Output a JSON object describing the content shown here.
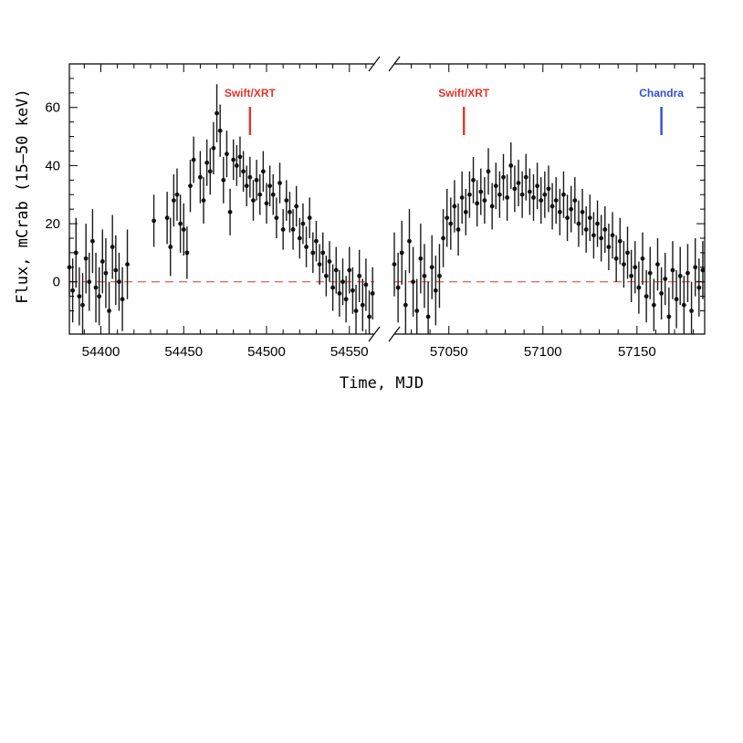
{
  "chart_data": {
    "type": "scatter",
    "xlabel": "Time, MJD",
    "ylabel": "Flux, mCrab (15–50 keV)",
    "ylim": [
      -18,
      75
    ],
    "y_ticks": [
      0,
      20,
      40,
      60
    ],
    "reference_line": {
      "y": 0,
      "style": "dashed",
      "color": "#e0352b"
    },
    "panels": [
      {
        "xlim": [
          54381,
          54565
        ],
        "x_ticks": [
          54400,
          54450,
          54500,
          54550
        ],
        "series": [
          {
            "x": [
              54381,
              54383,
              54385,
              54387,
              54389,
              54391,
              54393,
              54395,
              54397,
              54399,
              54401,
              54403,
              54405,
              54407,
              54409,
              54411,
              54413,
              54416,
              54432,
              54440,
              54442,
              54444,
              54446,
              54448,
              54450,
              54452,
              54454,
              54456,
              54460,
              54462,
              54464,
              54466,
              54468,
              54470,
              54472,
              54474,
              54476,
              54478,
              54480,
              54482,
              54484,
              54486,
              54488,
              54490,
              54492,
              54494,
              54496,
              54498,
              54500,
              54502,
              54504,
              54506,
              54508,
              54510,
              54512,
              54514,
              54516,
              54518,
              54520,
              54522,
              54524,
              54526,
              54528,
              54530,
              54532,
              54534,
              54536,
              54538,
              54540,
              54542,
              54544,
              54546,
              54548,
              54550,
              54552,
              54554,
              54556,
              54558,
              54560,
              54562,
              54564
            ],
            "y": [
              5,
              -3,
              10,
              -5,
              -8,
              8,
              0,
              14,
              -2,
              -5,
              7,
              3,
              -10,
              12,
              4,
              0,
              -6,
              6,
              21,
              22,
              12,
              28,
              30,
              20,
              18,
              10,
              33,
              42,
              36,
              28,
              41,
              38,
              46,
              58,
              52,
              35,
              44,
              24,
              42,
              40,
              43,
              38,
              33,
              36,
              28,
              35,
              30,
              38,
              27,
              33,
              30,
              22,
              34,
              18,
              28,
              24,
              18,
              26,
              15,
              20,
              12,
              22,
              10,
              14,
              6,
              10,
              2,
              7,
              -2,
              4,
              -4,
              0,
              -6,
              4,
              -3,
              -10,
              2,
              -8,
              -1,
              -12,
              -4
            ],
            "err": [
              10,
              11,
              12,
              10,
              11,
              12,
              10,
              11,
              12,
              10,
              11,
              12,
              10,
              11,
              12,
              10,
              11,
              12,
              9,
              9,
              10,
              9,
              9,
              10,
              9,
              9,
              9,
              8,
              9,
              8,
              8,
              8,
              9,
              10,
              9,
              8,
              8,
              8,
              7,
              7,
              7,
              7,
              7,
              7,
              7,
              7,
              7,
              7,
              7,
              7,
              7,
              7,
              7,
              7,
              7,
              7,
              7,
              7,
              7,
              7,
              7,
              7,
              7,
              7,
              7,
              7,
              7,
              7,
              8,
              8,
              8,
              8,
              8,
              8,
              8,
              9,
              9,
              9,
              9,
              9,
              9
            ]
          }
        ],
        "annotations": [
          {
            "label": "Swift/XRT",
            "x": 54490,
            "color": "#e0352b"
          }
        ]
      },
      {
        "xlim": [
          57021,
          57186
        ],
        "x_ticks": [
          57050,
          57100,
          57150
        ],
        "series": [
          {
            "x": [
              57021,
              57023,
              57025,
              57027,
              57029,
              57031,
              57033,
              57035,
              57037,
              57039,
              57041,
              57043,
              57045,
              57047,
              57049,
              57051,
              57053,
              57055,
              57057,
              57059,
              57061,
              57063,
              57065,
              57067,
              57069,
              57071,
              57073,
              57075,
              57077,
              57079,
              57081,
              57083,
              57085,
              57087,
              57089,
              57091,
              57093,
              57095,
              57097,
              57099,
              57101,
              57103,
              57105,
              57107,
              57109,
              57111,
              57113,
              57115,
              57117,
              57119,
              57121,
              57123,
              57125,
              57127,
              57129,
              57131,
              57133,
              57135,
              57137,
              57139,
              57141,
              57143,
              57145,
              57147,
              57149,
              57151,
              57153,
              57155,
              57157,
              57159,
              57161,
              57163,
              57165,
              57167,
              57169,
              57171,
              57173,
              57175,
              57177,
              57179,
              57181,
              57183,
              57185
            ],
            "y": [
              6,
              -2,
              10,
              -8,
              14,
              0,
              -10,
              8,
              2,
              -12,
              5,
              -3,
              2,
              15,
              22,
              20,
              26,
              18,
              29,
              24,
              30,
              35,
              27,
              31,
              28,
              38,
              26,
              33,
              30,
              36,
              29,
              40,
              32,
              34,
              30,
              36,
              31,
              29,
              33,
              28,
              30,
              32,
              26,
              28,
              24,
              30,
              22,
              25,
              28,
              20,
              24,
              18,
              22,
              16,
              20,
              15,
              18,
              12,
              16,
              8,
              14,
              6,
              10,
              2,
              5,
              -2,
              8,
              -5,
              3,
              -8,
              6,
              -4,
              1,
              -12,
              4,
              -6,
              2,
              -8,
              3,
              -10,
              5,
              -2,
              4
            ],
            "err": [
              11,
              12,
              11,
              12,
              11,
              12,
              11,
              12,
              11,
              12,
              11,
              12,
              11,
              10,
              10,
              9,
              9,
              9,
              9,
              8,
              8,
              8,
              8,
              8,
              8,
              8,
              8,
              8,
              8,
              8,
              8,
              8,
              8,
              8,
              8,
              8,
              8,
              8,
              8,
              8,
              8,
              8,
              8,
              8,
              8,
              8,
              8,
              8,
              8,
              8,
              8,
              8,
              8,
              8,
              8,
              8,
              8,
              8,
              8,
              8,
              8,
              8,
              9,
              9,
              9,
              9,
              9,
              9,
              9,
              9,
              9,
              9,
              9,
              10,
              10,
              10,
              10,
              10,
              10,
              10,
              10,
              10,
              10
            ]
          }
        ],
        "annotations": [
          {
            "label": "Swift/XRT",
            "x": 57058,
            "color": "#e0352b"
          },
          {
            "label": "Chandra",
            "x": 57163,
            "color": "#2f4fd8"
          }
        ]
      }
    ]
  }
}
